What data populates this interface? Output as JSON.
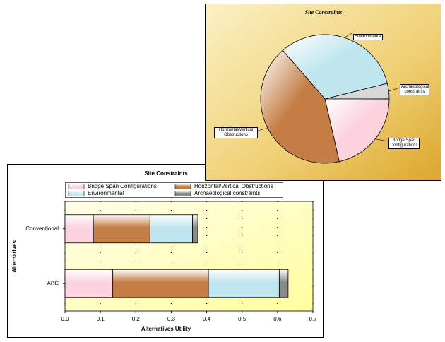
{
  "chart_data": [
    {
      "type": "bar",
      "orientation": "horizontal",
      "stacked": true,
      "title": "Site Constraints",
      "categories": [
        "Conventional",
        "ABC"
      ],
      "series": [
        {
          "name": "Bridge Span Configurations",
          "color": "#fbd3df",
          "values": [
            0.08,
            0.135
          ]
        },
        {
          "name": "Horizontal/Vertical Obstructions",
          "color": "#c47e45",
          "values": [
            0.16,
            0.27
          ]
        },
        {
          "name": "Environmental",
          "color": "#bfe6ee",
          "values": [
            0.12,
            0.2
          ]
        },
        {
          "name": "Archaeological constraints",
          "color": "#8a8a8a",
          "values": [
            0.015,
            0.025
          ]
        }
      ],
      "xlabel": "Alternatives Utility",
      "ylabel": "Alternatives",
      "xlim": [
        0,
        0.7
      ],
      "xticks": [
        {
          "value": 0,
          "label": "0.0"
        },
        {
          "value": 0.1,
          "label": "0.1"
        },
        {
          "value": 0.2,
          "label": "0.2"
        },
        {
          "value": 0.3,
          "label": "0.3"
        },
        {
          "value": 0.4,
          "label": "0.4"
        },
        {
          "value": 0.5,
          "label": "0.5"
        },
        {
          "value": 0.6,
          "label": "0.6"
        },
        {
          "value": 0.7,
          "label": "0.7"
        }
      ],
      "grid": true
    },
    {
      "type": "pie",
      "title": "Site Constraints",
      "categories": [
        "Environmental",
        "Archaeological constraints",
        "Bridge Span Configurations",
        "Horizontal/Vertical Obstructions"
      ],
      "values": [
        32.5,
        3.9,
        21.4,
        42.2
      ],
      "colors": [
        "#bfe6ee",
        "#d8d8d8",
        "#fbd3df",
        "#c47e45"
      ]
    }
  ]
}
